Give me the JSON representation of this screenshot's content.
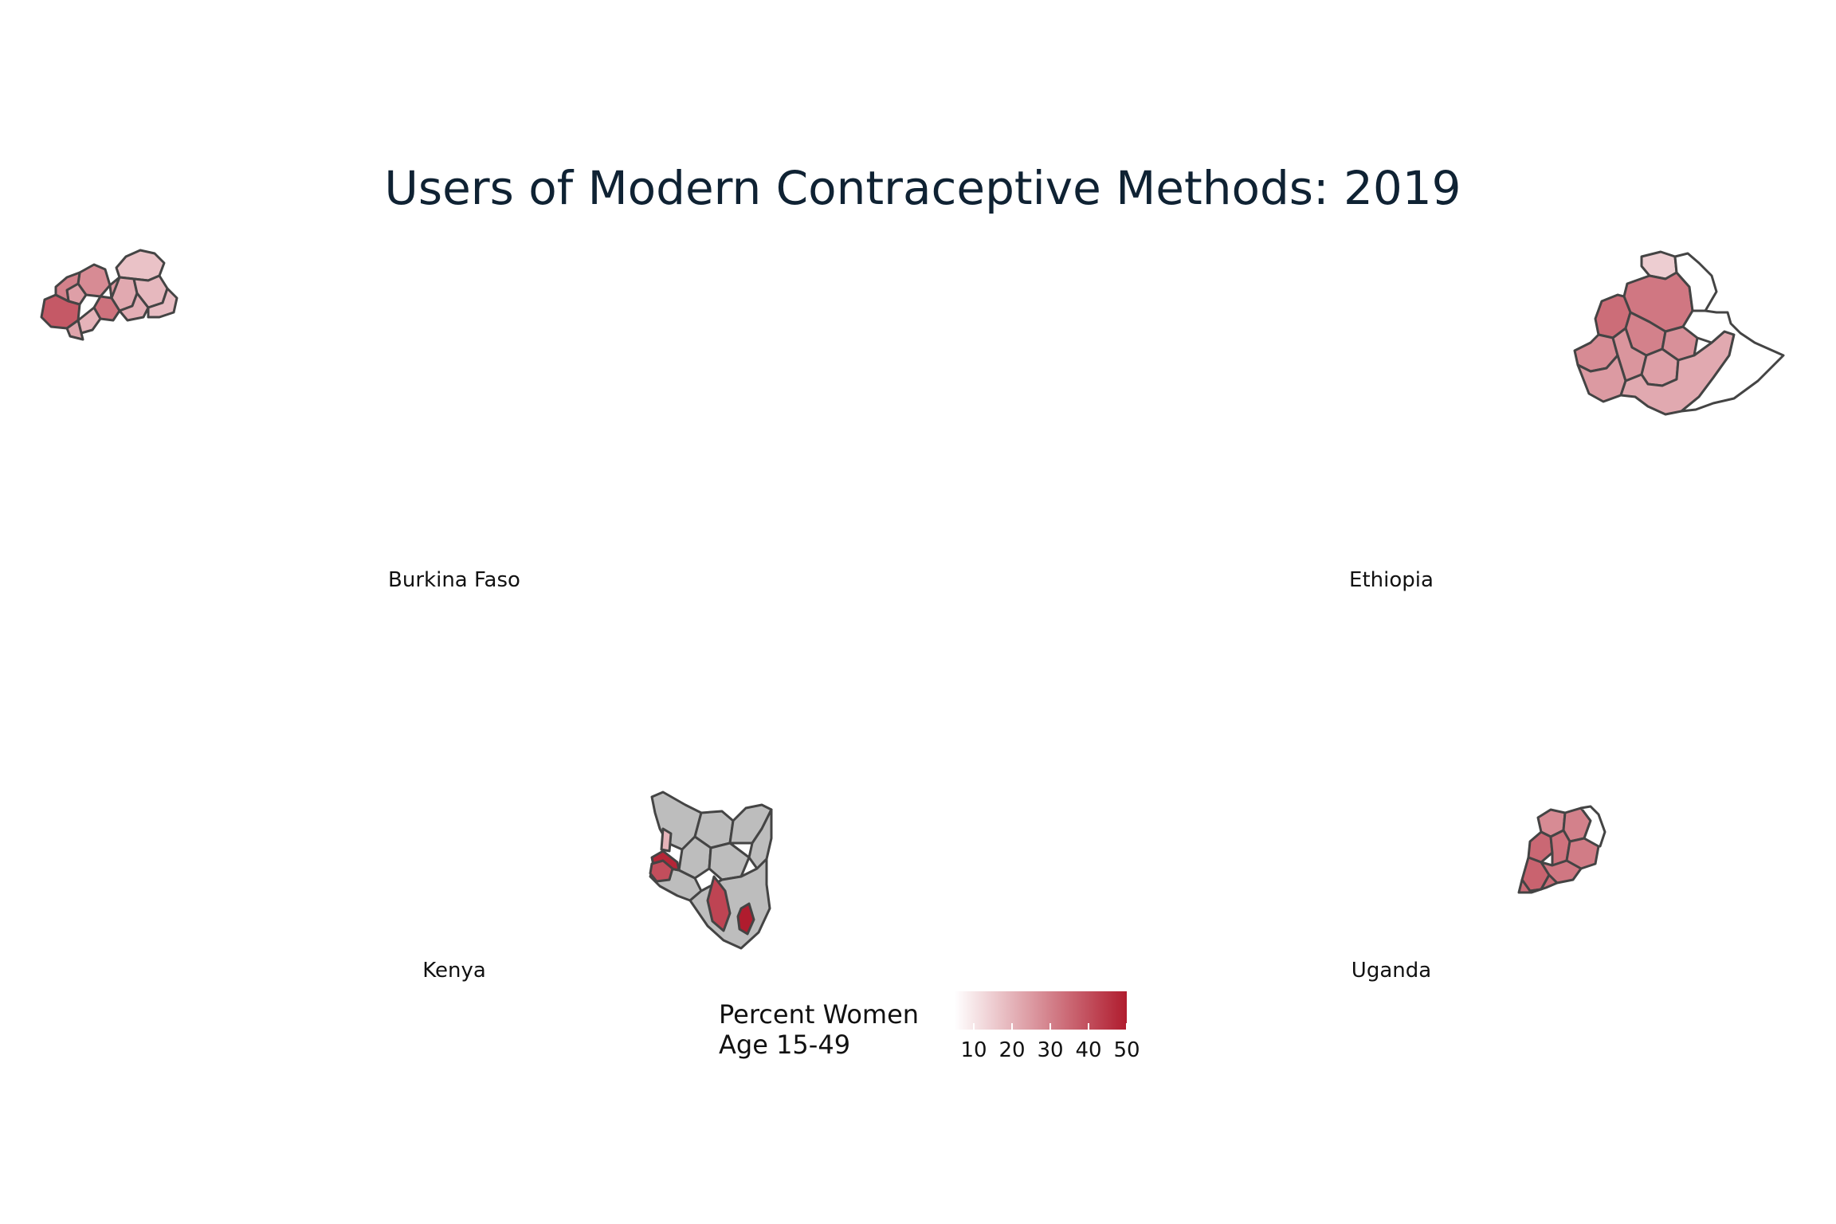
{
  "title": "Users of Modern Contraceptive Methods: 2019",
  "colors": {
    "scale_low": "#ffffff",
    "scale_high": "#b01c2e",
    "missing": "#bdbdbd",
    "border": "#444444",
    "title": "#0f2233"
  },
  "facets": [
    {
      "label": "Burkina Faso",
      "regions": [
        {
          "value": 17
        },
        {
          "value": 22
        },
        {
          "value": 19
        },
        {
          "value": 28
        },
        {
          "value": 33
        },
        {
          "value": 26
        },
        {
          "value": 21
        },
        {
          "value": 18
        },
        {
          "value": 24
        },
        {
          "value": 38
        },
        {
          "value": 30
        },
        {
          "value": 20
        },
        {
          "value": 23
        }
      ]
    },
    {
      "label": "Ethiopia",
      "regions": [
        {
          "value": 15
        },
        {
          "value": 32
        },
        {
          "value": 34
        },
        {
          "value": 30
        },
        {
          "value": 28
        },
        {
          "value": 27
        },
        {
          "value": 26
        },
        {
          "value": 24
        },
        {
          "value": 25
        },
        {
          "value": 22
        },
        {
          "value": null
        },
        {
          "value": null
        }
      ]
    },
    {
      "label": "Kenya",
      "regions": [
        {
          "value": null
        },
        {
          "value": null
        },
        {
          "value": null
        },
        {
          "value": null
        },
        {
          "value": null
        },
        {
          "value": null
        },
        {
          "value": null
        },
        {
          "value": null
        },
        {
          "value": 48
        },
        {
          "value": 42
        },
        {
          "value": 40
        },
        {
          "value": 20
        },
        {
          "value": 50
        }
      ]
    },
    {
      "label": "Uganda",
      "regions": [
        {
          "value": 28
        },
        {
          "value": 30
        },
        {
          "value": 35
        },
        {
          "value": 33
        },
        {
          "value": 31
        },
        {
          "value": 36
        },
        {
          "value": 32
        },
        {
          "value": 34
        },
        {
          "value": null
        }
      ]
    }
  ],
  "legend": {
    "title_line1": "Percent Women",
    "title_line2": "Age 15-49",
    "min": 5,
    "max": 50,
    "ticks": [
      10,
      20,
      30,
      40,
      50
    ]
  }
}
